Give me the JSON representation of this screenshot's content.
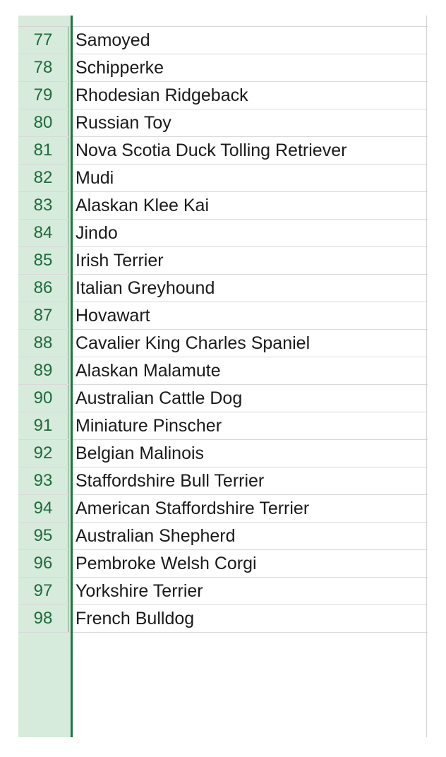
{
  "sheet": {
    "rows": [
      {
        "num": "77",
        "value": "Samoyed"
      },
      {
        "num": "78",
        "value": "Schipperke"
      },
      {
        "num": "79",
        "value": "Rhodesian Ridgeback"
      },
      {
        "num": "80",
        "value": "Russian Toy"
      },
      {
        "num": "81",
        "value": "Nova Scotia Duck Tolling Retriever"
      },
      {
        "num": "82",
        "value": "Mudi"
      },
      {
        "num": "83",
        "value": "Alaskan Klee Kai"
      },
      {
        "num": "84",
        "value": "Jindo"
      },
      {
        "num": "85",
        "value": "Irish Terrier"
      },
      {
        "num": "86",
        "value": "Italian Greyhound"
      },
      {
        "num": "87",
        "value": "Hovawart"
      },
      {
        "num": "88",
        "value": "Cavalier King Charles Spaniel"
      },
      {
        "num": "89",
        "value": "Alaskan Malamute"
      },
      {
        "num": "90",
        "value": "Australian Cattle Dog"
      },
      {
        "num": "91",
        "value": "Miniature Pinscher"
      },
      {
        "num": "92",
        "value": "Belgian Malinois"
      },
      {
        "num": "93",
        "value": "Staffordshire Bull Terrier"
      },
      {
        "num": "94",
        "value": "American Staffordshire Terrier"
      },
      {
        "num": "95",
        "value": "Australian Shepherd"
      },
      {
        "num": "96",
        "value": "Pembroke Welsh Corgi"
      },
      {
        "num": "97",
        "value": "Yorkshire Terrier"
      },
      {
        "num": "98",
        "value": "French Bulldog"
      }
    ]
  },
  "colors": {
    "row_header_bg": "#d6ebdc",
    "row_header_text": "#1e6b3c",
    "selection_edge": "#217346",
    "gridline": "#d9d9d9"
  }
}
